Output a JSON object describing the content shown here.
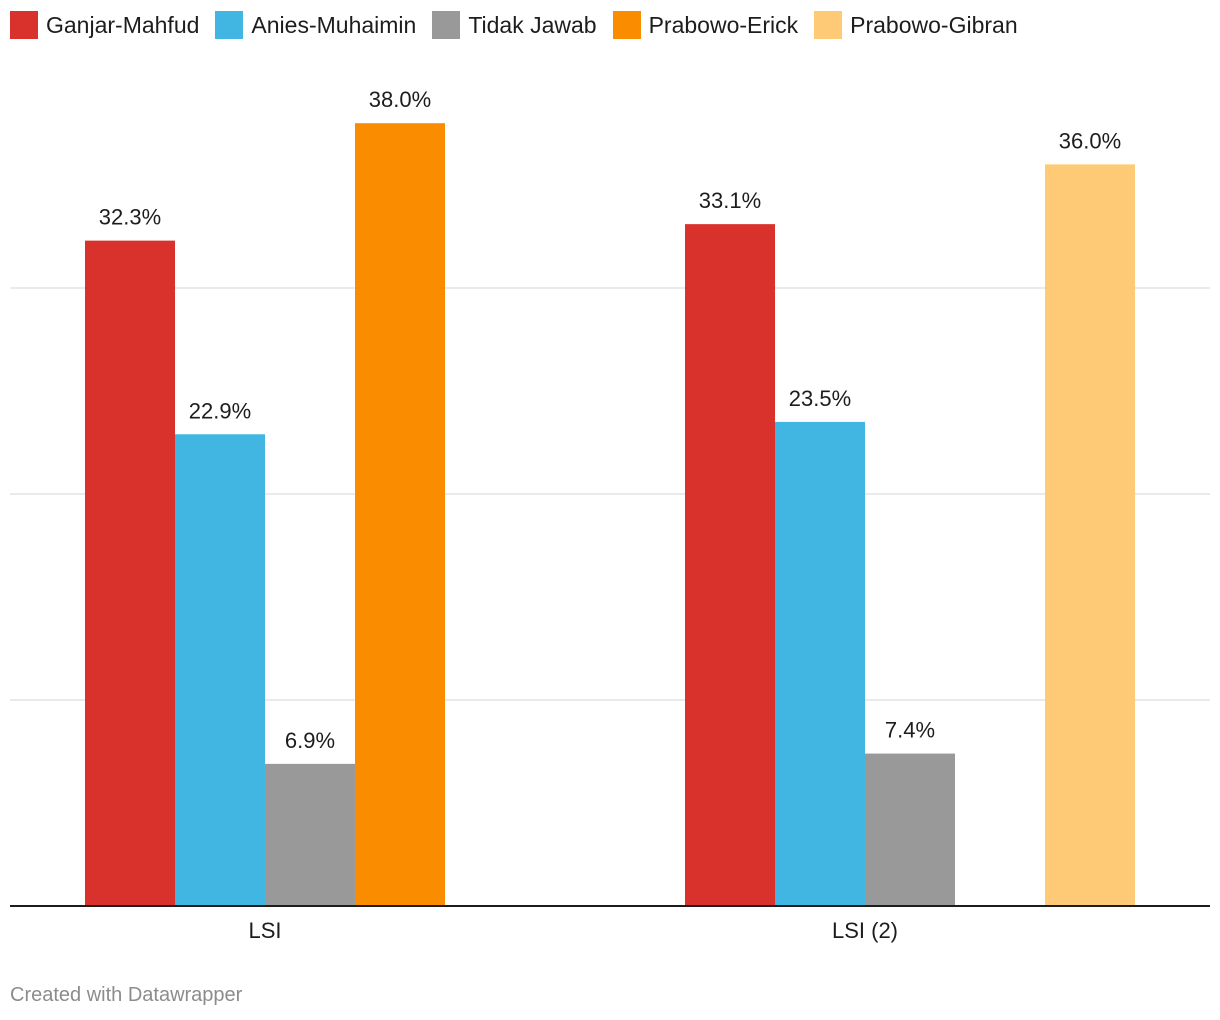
{
  "chart_data": {
    "type": "bar",
    "categories": [
      "LSI",
      "LSI (2)"
    ],
    "series": [
      {
        "name": "Ganjar-Mahfud",
        "color": "#d9312b",
        "values": [
          32.3,
          33.1
        ],
        "labels": [
          "32.3%",
          "33.1%"
        ]
      },
      {
        "name": "Anies-Muhaimin",
        "color": "#41b6e2",
        "values": [
          22.9,
          23.5
        ],
        "labels": [
          "22.9%",
          "23.5%"
        ]
      },
      {
        "name": "Tidak Jawab",
        "color": "#999999",
        "values": [
          6.9,
          7.4
        ],
        "labels": [
          "6.9%",
          "7.4%"
        ]
      },
      {
        "name": "Prabowo-Erick",
        "color": "#fa8c00",
        "values": [
          38.0,
          null
        ],
        "labels": [
          "38.0%",
          ""
        ]
      },
      {
        "name": "Prabowo-Gibran",
        "color": "#ffca76",
        "values": [
          null,
          36.0
        ],
        "labels": [
          "",
          "36.0%"
        ]
      }
    ],
    "title": "",
    "xlabel": "",
    "ylabel": "",
    "ylim": [
      0,
      40
    ],
    "grid": true,
    "legend_position": "top-left"
  },
  "footer": {
    "credit": "Created with Datawrapper"
  }
}
